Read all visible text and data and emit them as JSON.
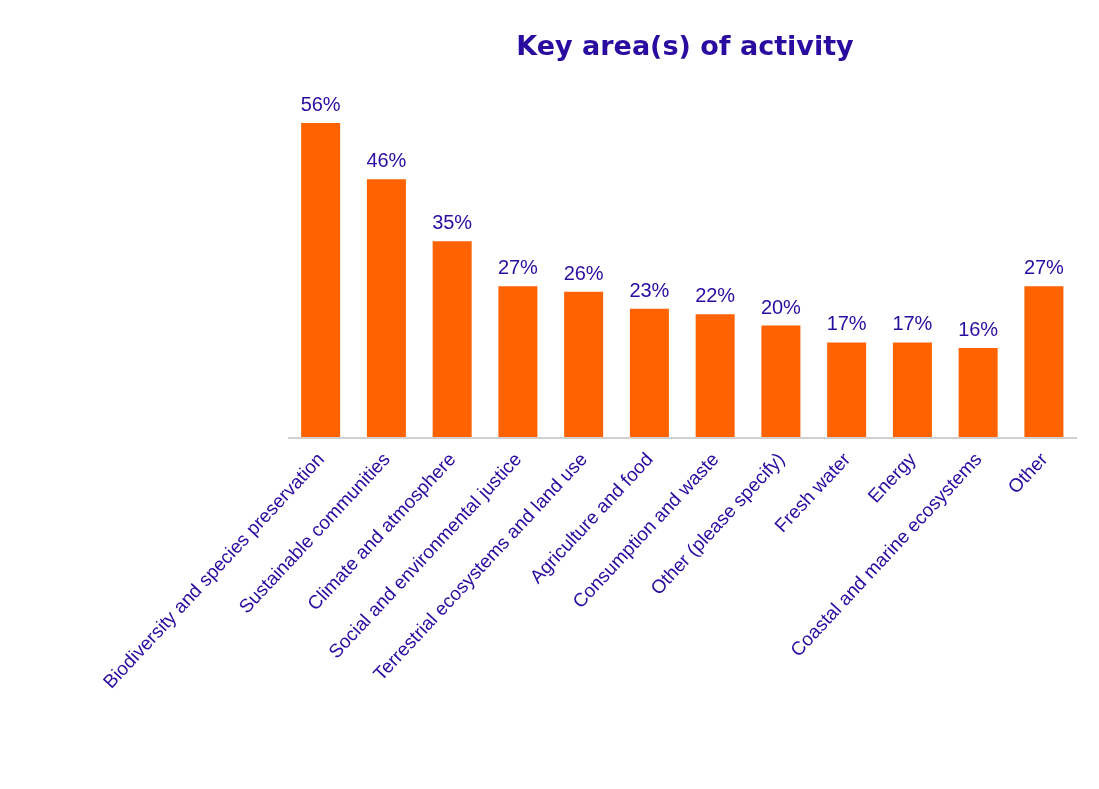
{
  "chart_data": {
    "type": "bar",
    "title": "Key area(s) of activity",
    "categories": [
      "Biodiversity and species preservation",
      "Sustainable communities",
      "Climate and atmosphere",
      "Social and environmental justice",
      "Terrestrial ecosystems and land use",
      "Agriculture and food",
      "Consumption and waste",
      "Other (please specify)",
      "Fresh water",
      "Energy",
      "Coastal and marine ecosystems",
      "Other"
    ],
    "values": [
      56,
      46,
      35,
      27,
      26,
      23,
      22,
      20,
      17,
      17,
      16,
      27
    ],
    "value_labels": [
      "56%",
      "46%",
      "35%",
      "27%",
      "26%",
      "23%",
      "22%",
      "20%",
      "17%",
      "17%",
      "16%",
      "27%"
    ],
    "color": "#ff6200",
    "grid": false,
    "legend": false
  }
}
